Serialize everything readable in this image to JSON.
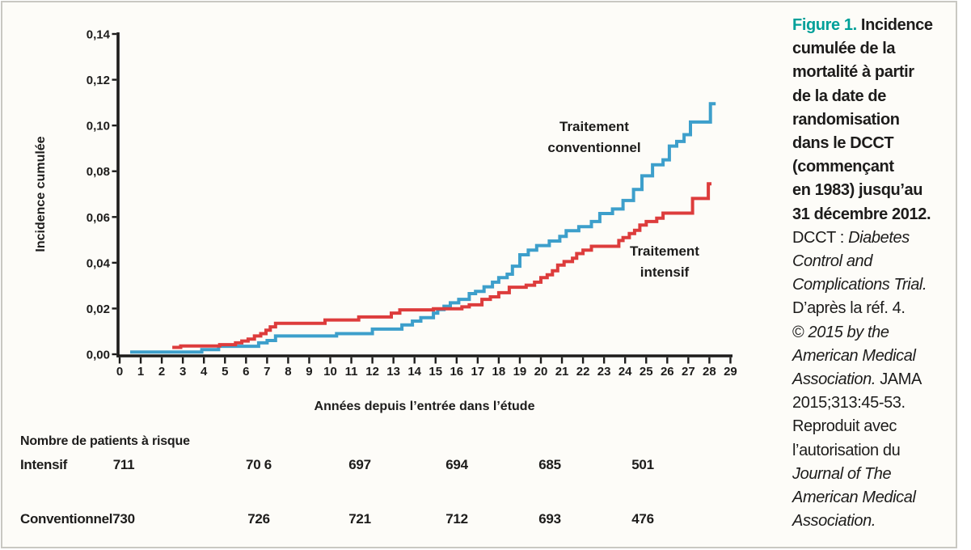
{
  "figure": {
    "background": "#fdfcf8",
    "frame_border_color": "#c9c8c2",
    "ink_color": "#1d1c1b",
    "figure_label_color": "#00a099"
  },
  "chart_data": {
    "type": "line",
    "subtype": "step",
    "title": "",
    "xlabel": "Années depuis l’entrée dans l’étude",
    "ylabel": "Incidence cumulée",
    "xlim": [
      0,
      29
    ],
    "ylim": [
      0,
      0.14
    ],
    "grid": false,
    "legend_position": "inline-labels",
    "x_ticks": [
      0,
      1,
      2,
      3,
      4,
      5,
      6,
      7,
      8,
      9,
      10,
      11,
      12,
      13,
      14,
      15,
      16,
      17,
      18,
      19,
      20,
      21,
      22,
      23,
      24,
      25,
      26,
      27,
      28,
      29
    ],
    "y_ticks": [
      {
        "v": 0.0,
        "label": "0,00"
      },
      {
        "v": 0.02,
        "label": "0,02"
      },
      {
        "v": 0.04,
        "label": "0,04"
      },
      {
        "v": 0.06,
        "label": "0,06"
      },
      {
        "v": 0.08,
        "label": "0,08"
      },
      {
        "v": 0.1,
        "label": "0,10"
      },
      {
        "v": 0.12,
        "label": "0,12"
      },
      {
        "v": 0.14,
        "label": "0,14"
      }
    ],
    "series": [
      {
        "name": "Traitement conventionnel",
        "label": "Traitement\nconventionnel",
        "color": "#3d9fcb",
        "x_end": 28.3,
        "points": [
          [
            0.5,
            0.001
          ],
          [
            3.9,
            0.002
          ],
          [
            4.7,
            0.0035
          ],
          [
            6.6,
            0.005
          ],
          [
            7.0,
            0.006
          ],
          [
            7.4,
            0.008
          ],
          [
            10.3,
            0.009
          ],
          [
            12.0,
            0.011
          ],
          [
            13.4,
            0.0128
          ],
          [
            13.9,
            0.0145
          ],
          [
            14.3,
            0.016
          ],
          [
            14.9,
            0.018
          ],
          [
            15.1,
            0.0195
          ],
          [
            15.4,
            0.021
          ],
          [
            15.7,
            0.0225
          ],
          [
            16.1,
            0.024
          ],
          [
            16.6,
            0.0265
          ],
          [
            16.9,
            0.0275
          ],
          [
            17.3,
            0.0295
          ],
          [
            17.7,
            0.0315
          ],
          [
            18.0,
            0.0335
          ],
          [
            18.4,
            0.035
          ],
          [
            18.65,
            0.0385
          ],
          [
            19.0,
            0.0435
          ],
          [
            19.4,
            0.0455
          ],
          [
            19.8,
            0.0475
          ],
          [
            20.4,
            0.0495
          ],
          [
            20.9,
            0.0515
          ],
          [
            21.2,
            0.054
          ],
          [
            21.8,
            0.0558
          ],
          [
            22.4,
            0.058
          ],
          [
            22.8,
            0.0615
          ],
          [
            23.4,
            0.0635
          ],
          [
            23.9,
            0.0672
          ],
          [
            24.4,
            0.072
          ],
          [
            24.8,
            0.078
          ],
          [
            25.3,
            0.0828
          ],
          [
            25.8,
            0.085
          ],
          [
            26.1,
            0.091
          ],
          [
            26.45,
            0.093
          ],
          [
            26.8,
            0.096
          ],
          [
            27.1,
            0.1015
          ],
          [
            28.05,
            0.1095
          ]
        ]
      },
      {
        "name": "Traitement intensif",
        "label": "Traitement\nintensif",
        "color": "#dd3c3c",
        "x_end": 28.1,
        "points": [
          [
            2.5,
            0.003
          ],
          [
            2.9,
            0.0036
          ],
          [
            4.75,
            0.0042
          ],
          [
            5.5,
            0.005
          ],
          [
            5.8,
            0.0058
          ],
          [
            6.1,
            0.0066
          ],
          [
            6.4,
            0.008
          ],
          [
            6.7,
            0.009
          ],
          [
            6.95,
            0.0105
          ],
          [
            7.15,
            0.012
          ],
          [
            7.4,
            0.0135
          ],
          [
            9.75,
            0.015
          ],
          [
            11.35,
            0.0163
          ],
          [
            12.9,
            0.018
          ],
          [
            13.3,
            0.0194
          ],
          [
            14.9,
            0.0199
          ],
          [
            16.25,
            0.0207
          ],
          [
            16.6,
            0.0216
          ],
          [
            17.2,
            0.024
          ],
          [
            17.6,
            0.0251
          ],
          [
            18.0,
            0.0269
          ],
          [
            18.5,
            0.0293
          ],
          [
            19.3,
            0.0302
          ],
          [
            19.7,
            0.0315
          ],
          [
            20.0,
            0.0335
          ],
          [
            20.3,
            0.0347
          ],
          [
            20.55,
            0.0365
          ],
          [
            20.8,
            0.039
          ],
          [
            21.1,
            0.0405
          ],
          [
            21.5,
            0.042
          ],
          [
            21.7,
            0.044
          ],
          [
            22.0,
            0.0455
          ],
          [
            22.4,
            0.0472
          ],
          [
            23.7,
            0.0497
          ],
          [
            23.9,
            0.051
          ],
          [
            24.2,
            0.0528
          ],
          [
            24.45,
            0.0542
          ],
          [
            24.7,
            0.0565
          ],
          [
            25.0,
            0.058
          ],
          [
            25.5,
            0.0595
          ],
          [
            25.8,
            0.0617
          ],
          [
            27.2,
            0.0681
          ],
          [
            27.95,
            0.0745
          ]
        ]
      }
    ]
  },
  "risk_table": {
    "title": "Nombre de patients à risque",
    "years": [
      0,
      5,
      10,
      15,
      20,
      25
    ],
    "rows": [
      {
        "label": "Intensif",
        "values": [
          "711",
          "70 6",
          "697",
          "694",
          "685",
          "501"
        ]
      },
      {
        "label": "Conventionnel",
        "values": [
          "730",
          "726",
          "721",
          "712",
          "693",
          "476"
        ]
      }
    ]
  },
  "caption": {
    "lines": [
      [
        {
          "t": "Figure 1. ",
          "s": "fig"
        },
        {
          "t": "Incidence",
          "s": "b"
        }
      ],
      [
        {
          "t": "cumulée de la",
          "s": "b"
        }
      ],
      [
        {
          "t": "mortalité à partir",
          "s": "b"
        }
      ],
      [
        {
          "t": "de la date de",
          "s": "b"
        }
      ],
      [
        {
          "t": "randomisation",
          "s": "b"
        }
      ],
      [
        {
          "t": "dans le DCCT",
          "s": "b"
        }
      ],
      [
        {
          "t": "(commençant",
          "s": "b"
        }
      ],
      [
        {
          "t": "en 1983) jusqu’au",
          "s": "b"
        }
      ],
      [
        {
          "t": "31 décembre 2012.",
          "s": "b"
        }
      ],
      [
        {
          "t": "DCCT : ",
          "s": "r"
        },
        {
          "t": "Diabetes",
          "s": "i"
        }
      ],
      [
        {
          "t": "Control and",
          "s": "i"
        }
      ],
      [
        {
          "t": "Complications Trial.",
          "s": "i"
        }
      ],
      [
        {
          "t": "D’après la réf. 4.",
          "s": "r"
        }
      ],
      [
        {
          "t": "© ",
          "s": "r"
        },
        {
          "t": "2015 by the",
          "s": "i"
        }
      ],
      [
        {
          "t": "American Medical",
          "s": "i"
        }
      ],
      [
        {
          "t": "Association.",
          "s": "i"
        },
        {
          "t": " JAMA",
          "s": "r"
        }
      ],
      [
        {
          "t": "2015;313:45-53.",
          "s": "r"
        }
      ],
      [
        {
          "t": "Reproduit avec",
          "s": "r"
        }
      ],
      [
        {
          "t": "l’autorisation du",
          "s": "r"
        }
      ],
      [
        {
          "t": "Journal of The",
          "s": "i"
        }
      ],
      [
        {
          "t": "American Medical",
          "s": "i"
        }
      ],
      [
        {
          "t": "Association.",
          "s": "i"
        }
      ]
    ]
  }
}
